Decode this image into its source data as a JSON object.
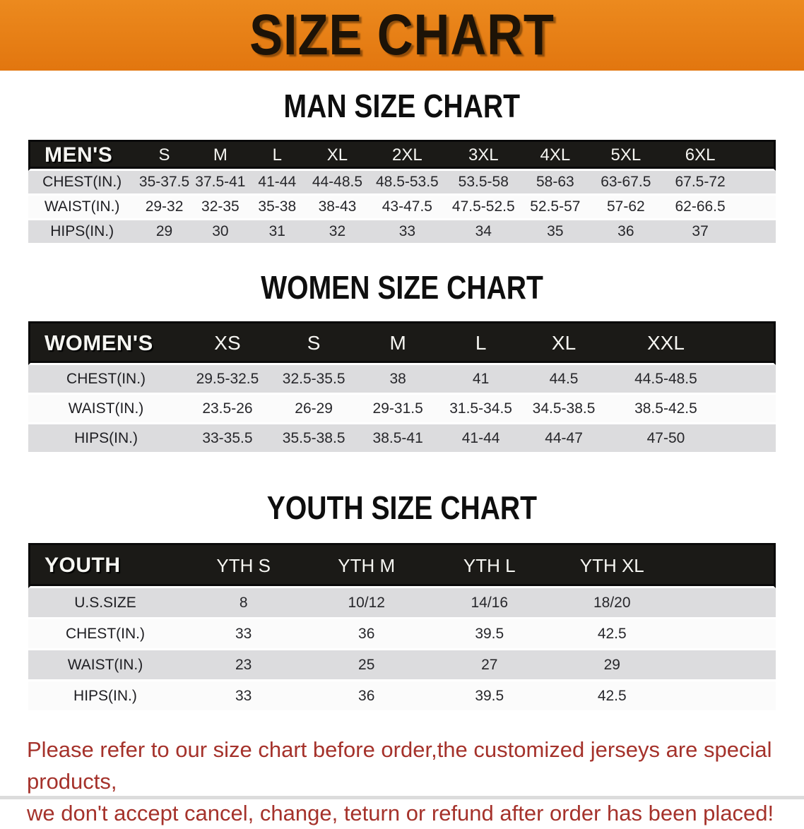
{
  "banner": {
    "title": "SIZE CHART"
  },
  "sections": {
    "men": {
      "heading": "MAN SIZE CHART"
    },
    "women": {
      "heading": "WOMEN SIZE CHART"
    },
    "youth": {
      "heading": "YOUTH SIZE CHART"
    }
  },
  "tables": {
    "men": {
      "corner_label": "MEN'S",
      "sizes": [
        "S",
        "M",
        "L",
        "XL",
        "2XL",
        "3XL",
        "4XL",
        "5XL",
        "6XL"
      ],
      "rows": [
        {
          "label": "CHEST(IN.)",
          "values": [
            "35-37.5",
            "37.5-41",
            "41-44",
            "44-48.5",
            "48.5-53.5",
            "53.5-58",
            "58-63",
            "63-67.5",
            "67.5-72"
          ]
        },
        {
          "label": "WAIST(IN.)",
          "values": [
            "29-32",
            "32-35",
            "35-38",
            "38-43",
            "43-47.5",
            "47.5-52.5",
            "52.5-57",
            "57-62",
            "62-66.5"
          ]
        },
        {
          "label": "HIPS(IN.)",
          "values": [
            "29",
            "30",
            "31",
            "32",
            "33",
            "34",
            "35",
            "36",
            "37"
          ]
        }
      ]
    },
    "women": {
      "corner_label": "WOMEN'S",
      "sizes": [
        "XS",
        "S",
        "M",
        "L",
        "XL",
        "XXL"
      ],
      "rows": [
        {
          "label": "CHEST(IN.)",
          "values": [
            "29.5-32.5",
            "32.5-35.5",
            "38",
            "41",
            "44.5",
            "44.5-48.5"
          ]
        },
        {
          "label": "WAIST(IN.)",
          "values": [
            "23.5-26",
            "26-29",
            "29-31.5",
            "31.5-34.5",
            "34.5-38.5",
            "38.5-42.5"
          ]
        },
        {
          "label": "HIPS(IN.)",
          "values": [
            "33-35.5",
            "35.5-38.5",
            "38.5-41",
            "41-44",
            "44-47",
            "47-50"
          ]
        }
      ]
    },
    "youth": {
      "corner_label": "YOUTH",
      "sizes": [
        "YTH S",
        "YTH M",
        "YTH L",
        "YTH XL"
      ],
      "rows": [
        {
          "label": "U.S.SIZE",
          "values": [
            "8",
            "10/12",
            "14/16",
            "18/20"
          ]
        },
        {
          "label": "CHEST(IN.)",
          "values": [
            "33",
            "36",
            "39.5",
            "42.5"
          ]
        },
        {
          "label": "WAIST(IN.)",
          "values": [
            "23",
            "25",
            "27",
            "29"
          ]
        },
        {
          "label": "HIPS(IN.)",
          "values": [
            "33",
            "36",
            "39.5",
            "42.5"
          ]
        }
      ]
    }
  },
  "footer": {
    "line1": "Please refer to our size chart before order,the customized jerseys are special products,",
    "line2": "we don't accept cancel, change, teturn or refund after order has been placed!"
  },
  "colors": {
    "banner_bg": "#E67E17",
    "header_bar": "#1B1A17",
    "row_alt": "#DCDCDE",
    "row_base": "#FBFBFB",
    "footer_text": "#A5322B"
  }
}
